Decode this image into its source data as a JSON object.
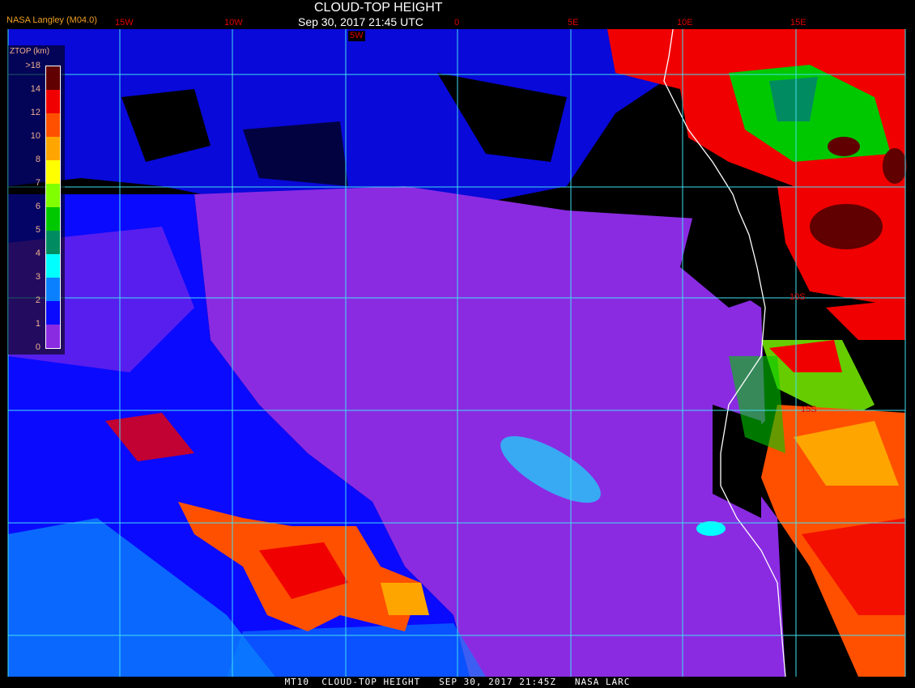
{
  "header": {
    "title": "CLOUD-TOP HEIGHT",
    "subtitle": "Sep 30, 2017 21:45 UTC",
    "credit": "NASA Langley (M04.0)"
  },
  "longitude_labels": [
    "15W",
    "10W",
    "5W",
    "0",
    "5E",
    "10E",
    "15E"
  ],
  "latitude_labels": [
    "10S",
    "15S"
  ],
  "legend": {
    "title": "ZTOP (km)",
    "ticks": [
      "0",
      "1",
      "2",
      "3",
      "4",
      "5",
      "6",
      "7",
      "8",
      "10",
      "12",
      "14",
      ">18"
    ],
    "colors": [
      "#8a2be2",
      "#0a0aff",
      "#0a80ff",
      "#00ffff",
      "#008c60",
      "#00c800",
      "#80ff00",
      "#ffff00",
      "#ffa500",
      "#ff5000",
      "#f00000",
      "#600000"
    ]
  },
  "footer": {
    "text": "MT10  CLOUD-TOP HEIGHT   SEP 30, 2017 21:45Z   NASA LARC"
  },
  "colors": {
    "graticule": "#40e0f0",
    "coastline": "#ffffff",
    "label_red": "#e00000"
  }
}
